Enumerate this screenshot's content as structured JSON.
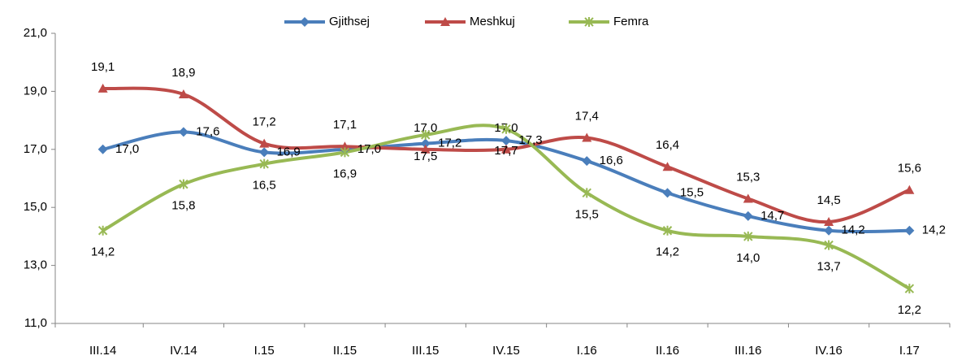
{
  "chart_data": {
    "type": "line",
    "categories": [
      "III.14",
      "IV.14",
      "I.15",
      "II.15",
      "III.15",
      "IV.15",
      "I.16",
      "II.16",
      "III.16",
      "IV.16",
      "I.17"
    ],
    "series": [
      {
        "name": "Gjithsej",
        "color": "#4a7ebb",
        "marker": "diamond",
        "values": [
          17.0,
          17.6,
          16.9,
          17.0,
          17.2,
          17.3,
          16.6,
          15.5,
          14.7,
          14.2,
          14.2
        ],
        "value_labels": [
          "17,0",
          "17,6",
          "16,9",
          "17,0",
          "17,2",
          "17,3",
          "16,6",
          "15,5",
          "14,7",
          "14,2",
          "14,2"
        ]
      },
      {
        "name": "Meshkuj",
        "color": "#be4b48",
        "marker": "triangle",
        "values": [
          19.1,
          18.9,
          17.2,
          17.1,
          17.0,
          17.0,
          17.4,
          16.4,
          15.3,
          14.5,
          15.6
        ],
        "value_labels": [
          "19,1",
          "18,9",
          "17,2",
          "17,1",
          "17,0",
          "17,0",
          "17,4",
          "16,4",
          "15,3",
          "14,5",
          "15,6"
        ]
      },
      {
        "name": "Femra",
        "color": "#98b954",
        "marker": "asterisk",
        "values": [
          14.2,
          15.8,
          16.5,
          16.9,
          17.5,
          17.7,
          15.5,
          14.2,
          14.0,
          13.7,
          12.2
        ],
        "value_labels": [
          "14,2",
          "15,8",
          "16,5",
          "16,9",
          "17,5",
          "17,7",
          "15,5",
          "14,2",
          "14,0",
          "13,7",
          "12,2"
        ]
      }
    ],
    "ylim": [
      11,
      21
    ],
    "yticks": [
      {
        "value": 11,
        "label": "11,0"
      },
      {
        "value": 13,
        "label": "13,0"
      },
      {
        "value": 15,
        "label": "15,0"
      },
      {
        "value": 17,
        "label": "17,0"
      },
      {
        "value": 19,
        "label": "19,0"
      },
      {
        "value": 21,
        "label": "21,0"
      }
    ],
    "grid": false,
    "smooth": true,
    "legend": "top"
  }
}
